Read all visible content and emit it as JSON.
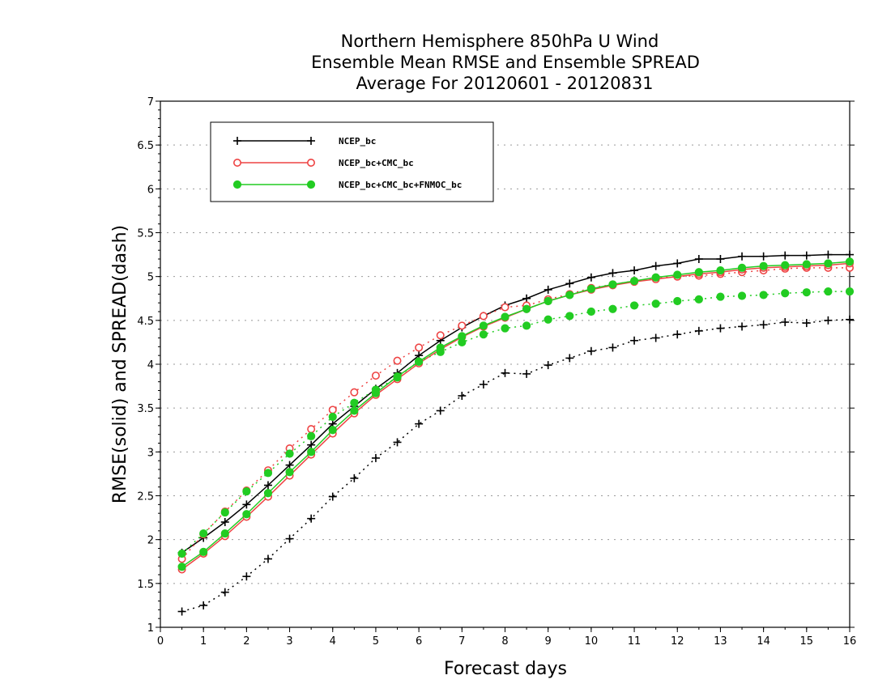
{
  "chart_data": {
    "type": "line",
    "title": [
      "Northern Hemisphere 850hPa U Wind",
      "Ensemble Mean RMSE and Ensemble SPREAD",
      "Average For 20120601 - 20120831"
    ],
    "xlabel": "Forecast days",
    "ylabel": "RMSE(solid) and SPREAD(dash)",
    "xlim": [
      0,
      16
    ],
    "ylim": [
      1,
      7
    ],
    "x_ticks": [
      "0",
      "1",
      "2",
      "3",
      "4",
      "5",
      "6",
      "7",
      "8",
      "9",
      "10",
      "11",
      "12",
      "13",
      "14",
      "15",
      "16"
    ],
    "y_ticks": [
      "1",
      "1.5",
      "2",
      "2.5",
      "3",
      "3.5",
      "4",
      "4.5",
      "5",
      "5.5",
      "6",
      "6.5",
      "7"
    ],
    "grid": "horizontal dotted",
    "legend_position": "top-left",
    "x": [
      0.5,
      1,
      1.5,
      2,
      2.5,
      3,
      3.5,
      4,
      4.5,
      5,
      5.5,
      6,
      6.5,
      7,
      7.5,
      8,
      8.5,
      9,
      9.5,
      10,
      10.5,
      11,
      11.5,
      12,
      12.5,
      13,
      13.5,
      14,
      14.5,
      15,
      15.5,
      16
    ],
    "series": [
      {
        "name": "NCEP_bc",
        "color": "#000000",
        "marker": "plus",
        "rmse": [
          1.85,
          2.02,
          2.2,
          2.4,
          2.62,
          2.85,
          3.08,
          3.32,
          3.52,
          3.72,
          3.9,
          4.1,
          4.27,
          4.42,
          4.55,
          4.67,
          4.75,
          4.85,
          4.92,
          4.99,
          5.04,
          5.07,
          5.12,
          5.15,
          5.2,
          5.2,
          5.23,
          5.23,
          5.24,
          5.24,
          5.25,
          5.25
        ],
        "spread": [
          1.18,
          1.25,
          1.4,
          1.58,
          1.78,
          2.01,
          2.24,
          2.49,
          2.7,
          2.93,
          3.11,
          3.32,
          3.47,
          3.64,
          3.77,
          3.9,
          3.89,
          3.99,
          4.07,
          4.15,
          4.19,
          4.27,
          4.3,
          4.34,
          4.38,
          4.41,
          4.43,
          4.45,
          4.48,
          4.47,
          4.5,
          4.51
        ]
      },
      {
        "name": "NCEP_bc+CMC_bc",
        "color": "#ee4444",
        "marker": "open-circle",
        "rmse": [
          1.66,
          1.84,
          2.04,
          2.26,
          2.49,
          2.73,
          2.97,
          3.21,
          3.44,
          3.65,
          3.83,
          4.01,
          4.17,
          4.31,
          4.43,
          4.53,
          4.63,
          4.72,
          4.79,
          4.85,
          4.9,
          4.94,
          4.97,
          5.0,
          5.03,
          5.05,
          5.08,
          5.1,
          5.11,
          5.12,
          5.13,
          5.15
        ],
        "spread": [
          1.78,
          2.06,
          2.32,
          2.56,
          2.79,
          3.04,
          3.26,
          3.48,
          3.68,
          3.87,
          4.04,
          4.19,
          4.33,
          4.44,
          4.55,
          4.65,
          4.67,
          4.74,
          4.8,
          4.87,
          4.91,
          4.95,
          4.98,
          5.0,
          5.01,
          5.03,
          5.05,
          5.07,
          5.09,
          5.1,
          5.1,
          5.1
        ]
      },
      {
        "name": "NCEP_bc+CMC_bc+FNMOC_bc",
        "color": "#22cc22",
        "marker": "filled-circle",
        "rmse": [
          1.69,
          1.86,
          2.07,
          2.29,
          2.53,
          2.77,
          3.0,
          3.25,
          3.47,
          3.67,
          3.86,
          4.03,
          4.19,
          4.32,
          4.44,
          4.54,
          4.63,
          4.72,
          4.79,
          4.86,
          4.91,
          4.95,
          4.99,
          5.02,
          5.05,
          5.07,
          5.1,
          5.12,
          5.13,
          5.14,
          5.15,
          5.17
        ],
        "spread": [
          1.84,
          2.07,
          2.31,
          2.55,
          2.76,
          2.98,
          3.18,
          3.4,
          3.56,
          3.71,
          3.85,
          4.03,
          4.14,
          4.25,
          4.34,
          4.41,
          4.44,
          4.51,
          4.55,
          4.6,
          4.63,
          4.67,
          4.69,
          4.72,
          4.74,
          4.77,
          4.78,
          4.79,
          4.81,
          4.82,
          4.83,
          4.83
        ]
      }
    ]
  }
}
